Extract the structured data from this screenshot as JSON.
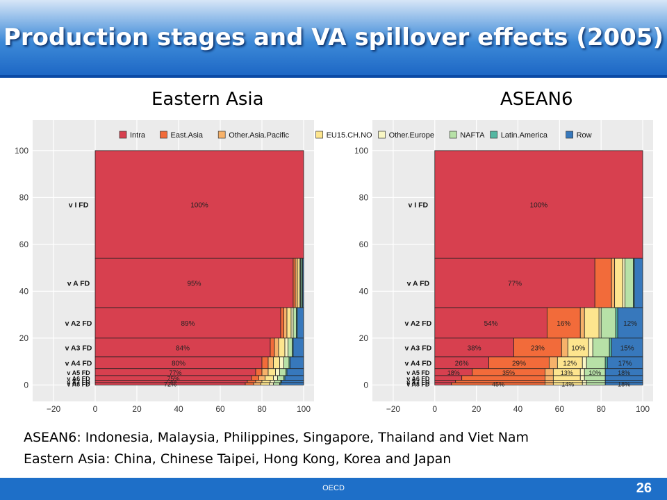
{
  "slide": {
    "title": "Production stages and VA spillover effects (2005)",
    "notes": [
      "ASEAN6: Indonesia, Malaysia, Philippines, Singapore, Thailand and Viet Nam",
      "Eastern Asia: China, Chinese Taipei, Hong Kong, Korea and Japan"
    ],
    "footer": "OECD",
    "page_number": "26"
  },
  "legend": [
    {
      "name": "Intra",
      "color": "#d7404f"
    },
    {
      "name": "East.Asia",
      "color": "#f26b3a"
    },
    {
      "name": "Other.Asia.Pacific",
      "color": "#f7b26a"
    },
    {
      "name": "EU15.CH.NO",
      "color": "#fde58e"
    },
    {
      "name": "Other.Europe",
      "color": "#f8f6c4"
    },
    {
      "name": "NAFTA",
      "color": "#b7e1a7"
    },
    {
      "name": "Latin.America",
      "color": "#55b7a2"
    },
    {
      "name": "Row",
      "color": "#3778bc"
    }
  ],
  "chart_data": [
    {
      "type": "bar",
      "subtitle": "Eastern Asia",
      "xlim": [
        -30,
        105
      ],
      "ylim": [
        -7,
        113
      ],
      "xticks": [
        -20,
        0,
        20,
        40,
        60,
        80,
        100
      ],
      "yticks": [
        0,
        20,
        40,
        60,
        80,
        100
      ],
      "bars": [
        {
          "label": "v I FD",
          "bottom": 54,
          "top": 100,
          "shares": [
            100,
            0,
            0,
            0,
            0,
            0,
            0,
            0
          ],
          "value_label": "100%"
        },
        {
          "label": "v A FD",
          "bottom": 33,
          "top": 54,
          "shares": [
            95,
            1,
            1,
            1,
            0.5,
            0.5,
            0.5,
            0.5
          ],
          "value_label": "95%"
        },
        {
          "label": "v A2 FD",
          "bottom": 20,
          "top": 33,
          "shares": [
            89,
            1.5,
            1.5,
            2,
            1,
            1.5,
            0.5,
            3
          ],
          "value_label": "89%"
        },
        {
          "label": "v A3 FD",
          "bottom": 12,
          "top": 20,
          "shares": [
            84,
            2,
            2,
            3,
            1.5,
            2,
            0.5,
            5
          ],
          "value_label": "84%"
        },
        {
          "label": "v A4 FD",
          "bottom": 7,
          "top": 12,
          "shares": [
            80,
            3,
            2.5,
            3,
            2,
            2.5,
            0.5,
            6.5
          ],
          "value_label": "80%"
        },
        {
          "label": "v A5 FD",
          "bottom": 4,
          "top": 7,
          "shares": [
            77,
            3,
            3,
            3.5,
            2,
            3,
            0.5,
            8
          ],
          "value_label": "77%"
        },
        {
          "label": "v A6 FD",
          "bottom": 2,
          "top": 4,
          "shares": [
            75,
            3.5,
            3,
            4,
            2,
            3,
            0.5,
            9
          ],
          "value_label": "75%"
        },
        {
          "label": "v A7 FD",
          "bottom": 1,
          "top": 2,
          "shares": [
            73,
            4,
            3,
            4,
            2,
            3,
            0.5,
            10.5
          ],
          "value_label": "73%"
        },
        {
          "label": "v A8 FD",
          "bottom": 0,
          "top": 1,
          "shares": [
            72,
            4,
            3.5,
            4,
            2,
            3,
            0.5,
            11
          ],
          "value_label": "72%"
        }
      ]
    },
    {
      "type": "bar",
      "subtitle": "ASEAN6",
      "xlim": [
        -30,
        105
      ],
      "ylim": [
        -7,
        113
      ],
      "xticks": [
        -20,
        0,
        20,
        40,
        60,
        80,
        100
      ],
      "yticks": [
        0,
        20,
        40,
        60,
        80,
        100
      ],
      "bars": [
        {
          "label": "v I FD",
          "bottom": 54,
          "top": 100,
          "shares": [
            100,
            0,
            0,
            0,
            0,
            0,
            0,
            0
          ],
          "value_labels": [
            "100%",
            "",
            "",
            "",
            "",
            "",
            "",
            ""
          ]
        },
        {
          "label": "v A FD",
          "bottom": 33,
          "top": 54,
          "shares": [
            77,
            8,
            1.5,
            4,
            1,
            4,
            0.5,
            4
          ],
          "value_labels": [
            "77%",
            "",
            "",
            "",
            "",
            "",
            "",
            ""
          ]
        },
        {
          "label": "v A2 FD",
          "bottom": 20,
          "top": 33,
          "shares": [
            54,
            16,
            2,
            7,
            1,
            7,
            1,
            12
          ],
          "value_labels": [
            "54%",
            "16%",
            "",
            "",
            "",
            "",
            "",
            "12%"
          ]
        },
        {
          "label": "v A3 FD",
          "bottom": 12,
          "top": 20,
          "shares": [
            38,
            23,
            3,
            10,
            2,
            8,
            1,
            15
          ],
          "value_labels": [
            "38%",
            "23%",
            "",
            "10%",
            "",
            "",
            "",
            "15%"
          ]
        },
        {
          "label": "v A4 FD",
          "bottom": 7,
          "top": 12,
          "shares": [
            26,
            29,
            4,
            12,
            2,
            9,
            1,
            17
          ],
          "value_labels": [
            "26%",
            "29%",
            "",
            "12%",
            "",
            "",
            "",
            "17%"
          ]
        },
        {
          "label": "v A5 FD",
          "bottom": 4,
          "top": 7,
          "shares": [
            18,
            35,
            4,
            13,
            2,
            10,
            0,
            18
          ],
          "value_labels": [
            "18%",
            "35%",
            "",
            "13%",
            "",
            "10%",
            "",
            "18%"
          ]
        },
        {
          "label": "v A6 FD",
          "bottom": 2,
          "top": 4,
          "shares": [
            13,
            40,
            4,
            13,
            2,
            10,
            0,
            18
          ],
          "value_labels": [
            "",
            "",
            "",
            "",
            "",
            "",
            "",
            ""
          ]
        },
        {
          "label": "v A7 FD",
          "bottom": 1,
          "top": 2,
          "shares": [
            10,
            43,
            4,
            14,
            2,
            9,
            0,
            18
          ],
          "value_labels": [
            "",
            "",
            "",
            "",
            "",
            "",
            "",
            ""
          ]
        },
        {
          "label": "v A8 FD",
          "bottom": 0,
          "top": 1,
          "shares": [
            8,
            45,
            4,
            14,
            2,
            9,
            0,
            18
          ],
          "value_labels": [
            "",
            "45%",
            "",
            "14%",
            "",
            "",
            "",
            "18%"
          ]
        }
      ]
    }
  ]
}
